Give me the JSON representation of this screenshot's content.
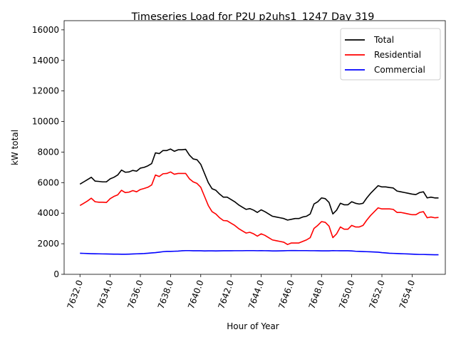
{
  "chart_data": {
    "type": "line",
    "title": "Timeseries Load for P2U p2uhs1_1247  Day 319",
    "xlabel": "Hour of Year",
    "ylabel": "kW total",
    "xlim": [
      7630.95,
      7656.2
    ],
    "ylim": [
      0,
      16600
    ],
    "x_ticks": [
      7632,
      7634,
      7636,
      7638,
      7640,
      7642,
      7644,
      7646,
      7648,
      7650,
      7652,
      7654
    ],
    "x_tick_labels": [
      "7632.0",
      "7634.0",
      "7636.0",
      "7638.0",
      "7640.0",
      "7642.0",
      "7644.0",
      "7646.0",
      "7648.0",
      "7650.0",
      "7652.0",
      "7654.0"
    ],
    "y_ticks": [
      0,
      2000,
      4000,
      6000,
      8000,
      10000,
      12000,
      14000,
      16000
    ],
    "y_tick_labels": [
      "0",
      "2000",
      "4000",
      "6000",
      "8000",
      "10000",
      "12000",
      "14000",
      "16000"
    ],
    "legend_position": "top-right",
    "x_start": 7632,
    "x_step": 0.25,
    "series": [
      {
        "name": "Total",
        "color": "#000000",
        "values": [
          5900,
          6050,
          6200,
          6350,
          6100,
          6080,
          6050,
          6050,
          6250,
          6350,
          6500,
          6820,
          6680,
          6700,
          6800,
          6750,
          6950,
          7000,
          7100,
          7250,
          7950,
          7900,
          8100,
          8100,
          8200,
          8050,
          8150,
          8150,
          8180,
          7800,
          7550,
          7500,
          7200,
          6600,
          6000,
          5600,
          5500,
          5250,
          5050,
          5050,
          4900,
          4750,
          4550,
          4400,
          4250,
          4300,
          4200,
          4050,
          4220,
          4100,
          3950,
          3800,
          3750,
          3700,
          3650,
          3550,
          3600,
          3650,
          3650,
          3750,
          3800,
          3950,
          4600,
          4750,
          5000,
          4950,
          4700,
          3950,
          4200,
          4650,
          4550,
          4550,
          4750,
          4650,
          4600,
          4650,
          5000,
          5300,
          5550,
          5800,
          5720,
          5720,
          5680,
          5650,
          5450,
          5400,
          5350,
          5300,
          5250,
          5220,
          5350,
          5400,
          5000,
          5050,
          5000,
          5000
        ]
      },
      {
        "name": "Residential",
        "color": "#ff0000",
        "values": [
          4500,
          4650,
          4800,
          4980,
          4750,
          4720,
          4720,
          4700,
          4950,
          5100,
          5200,
          5500,
          5350,
          5380,
          5480,
          5400,
          5550,
          5620,
          5700,
          5850,
          6500,
          6400,
          6580,
          6600,
          6700,
          6550,
          6600,
          6600,
          6600,
          6250,
          6050,
          5950,
          5700,
          5100,
          4500,
          4100,
          3950,
          3700,
          3520,
          3500,
          3350,
          3200,
          3000,
          2850,
          2700,
          2750,
          2650,
          2500,
          2650,
          2550,
          2400,
          2250,
          2200,
          2150,
          2100,
          1950,
          2050,
          2050,
          2050,
          2150,
          2250,
          2400,
          3000,
          3200,
          3450,
          3400,
          3150,
          2400,
          2650,
          3100,
          2950,
          2950,
          3200,
          3100,
          3100,
          3200,
          3550,
          3850,
          4100,
          4350,
          4280,
          4280,
          4280,
          4250,
          4050,
          4050,
          4000,
          3950,
          3900,
          3900,
          4050,
          4100,
          3700,
          3750,
          3700,
          3720
        ]
      },
      {
        "name": "Commercial",
        "color": "#0000ff",
        "values": [
          1380,
          1370,
          1360,
          1350,
          1345,
          1340,
          1335,
          1330,
          1325,
          1320,
          1320,
          1315,
          1315,
          1320,
          1330,
          1340,
          1350,
          1360,
          1380,
          1400,
          1420,
          1450,
          1480,
          1500,
          1500,
          1510,
          1520,
          1540,
          1550,
          1550,
          1540,
          1545,
          1540,
          1530,
          1535,
          1535,
          1530,
          1535,
          1540,
          1540,
          1540,
          1545,
          1545,
          1545,
          1550,
          1550,
          1550,
          1545,
          1550,
          1545,
          1540,
          1530,
          1530,
          1535,
          1540,
          1550,
          1555,
          1555,
          1550,
          1550,
          1550,
          1545,
          1545,
          1540,
          1535,
          1535,
          1535,
          1550,
          1545,
          1540,
          1545,
          1540,
          1530,
          1510,
          1500,
          1490,
          1480,
          1470,
          1460,
          1450,
          1420,
          1400,
          1380,
          1370,
          1360,
          1350,
          1340,
          1330,
          1320,
          1310,
          1300,
          1300,
          1290,
          1285,
          1280,
          1280
        ]
      }
    ]
  }
}
